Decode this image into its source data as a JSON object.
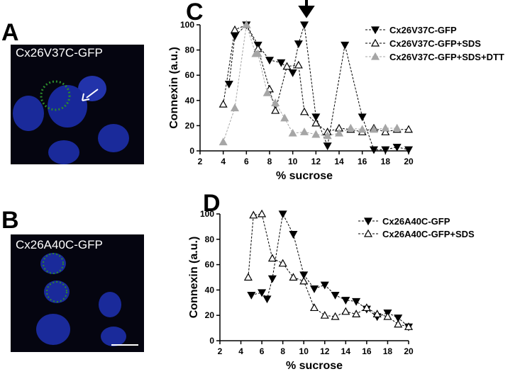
{
  "panels": [
    {
      "letter": "A",
      "caption": "Cx26V37C-GFP"
    },
    {
      "letter": "B",
      "caption": "Cx26A40C-GFP"
    }
  ],
  "chart_data": [
    {
      "type": "line",
      "panel_label": "C",
      "x_label": "% sucrose",
      "y_label": "Connexin (a.u.)",
      "xlim": [
        2,
        20
      ],
      "xticks": [
        2,
        4,
        6,
        8,
        10,
        12,
        14,
        16,
        18,
        20
      ],
      "ylim": [
        0,
        100
      ],
      "yticks": [
        0,
        20,
        40,
        60,
        80,
        100
      ],
      "series": [
        {
          "name": "Cx26V37C-GFP",
          "color": "#000000",
          "marker": "triangle-down-filled",
          "x": [
            4.5,
            5,
            6,
            7,
            8,
            9,
            10,
            10.5,
            11,
            12,
            13,
            14.5,
            16,
            17,
            18,
            19,
            20
          ],
          "values": [
            53,
            91,
            100,
            84,
            72,
            70,
            62,
            85,
            100,
            27,
            4,
            84,
            27,
            1,
            1,
            3,
            1
          ]
        },
        {
          "name": "Cx26V37C-GFP+SDS",
          "color": "#000000",
          "marker": "triangle-up-open",
          "x": [
            4,
            5,
            6,
            7,
            8,
            8.5,
            9.5,
            10.5,
            11,
            12,
            13,
            14,
            15,
            16,
            17,
            18,
            19,
            20
          ],
          "values": [
            37,
            96,
            100,
            81,
            49,
            32,
            67,
            68,
            31,
            22,
            15,
            18,
            17,
            15,
            18,
            15,
            17,
            17
          ]
        },
        {
          "name": "Cx26V37C-GFP+SDS+DTT",
          "color": "#a6a6a6",
          "marker": "triangle-up-filled",
          "x": [
            4,
            5,
            6,
            6.8,
            7,
            7.8,
            8.5,
            9.3,
            10,
            11,
            12,
            13,
            14,
            15,
            16,
            17,
            18,
            19
          ],
          "values": [
            7,
            34,
            100,
            77,
            77,
            46,
            38,
            26,
            14,
            15,
            13,
            12,
            14,
            18,
            17,
            17,
            18,
            18
          ]
        }
      ]
    },
    {
      "type": "line",
      "panel_label": "D",
      "x_label": "% sucrose",
      "y_label": "Connexin (a.u.)",
      "xlim": [
        2,
        20
      ],
      "xticks": [
        2,
        4,
        6,
        8,
        10,
        12,
        14,
        16,
        18,
        20
      ],
      "ylim": [
        0,
        100
      ],
      "yticks": [
        0,
        20,
        40,
        60,
        80,
        100
      ],
      "series": [
        {
          "name": "Cx26A40C-GFP",
          "color": "#000000",
          "marker": "triangle-down-filled",
          "x": [
            5,
            6,
            6.5,
            7,
            8,
            9,
            10,
            11,
            12,
            13,
            14,
            15,
            16,
            17,
            18,
            19,
            20
          ],
          "values": [
            36,
            38,
            33,
            49,
            100,
            84,
            52,
            41,
            44,
            36,
            32,
            31,
            25,
            19,
            22,
            18,
            11
          ]
        },
        {
          "name": "Cx26A40C-GFP+SDS",
          "color": "#000000",
          "marker": "triangle-up-open",
          "x": [
            4.7,
            5.2,
            6,
            7,
            8,
            9,
            10,
            11,
            12,
            13,
            14,
            15,
            16,
            17,
            18,
            19,
            20
          ],
          "values": [
            50,
            99,
            100,
            65,
            61,
            50,
            47,
            26,
            20,
            19,
            23,
            21,
            26,
            21,
            19,
            13,
            11
          ]
        }
      ]
    }
  ]
}
